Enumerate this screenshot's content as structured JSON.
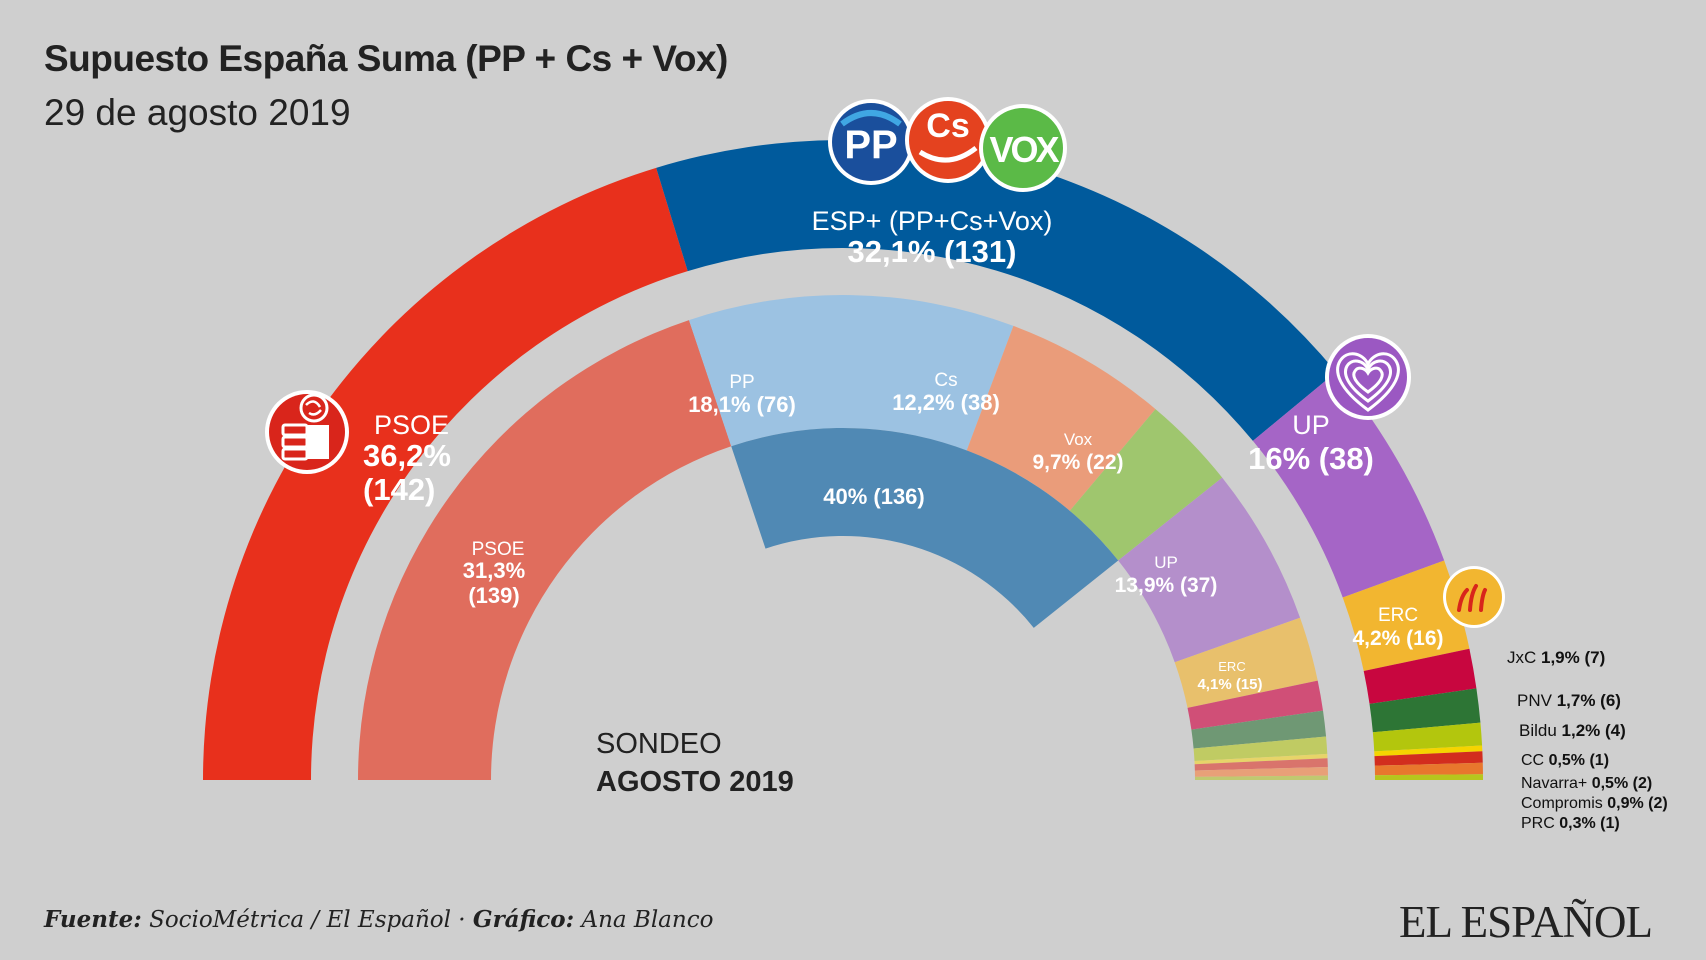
{
  "title": "Supuesto España Suma (PP + Cs + Vox)",
  "subtitle": "29 de agosto 2019",
  "footer": {
    "source_label": "Fuente:",
    "source": "SocioMétrica / El Español",
    "sep": " · ",
    "graphic_label": "Gráfico:",
    "author": "Ana Blanco"
  },
  "brand": "EL ESPAÑOL",
  "sondeo": {
    "label": "SONDEO",
    "date": "AGOSTO 2019"
  },
  "logos": {
    "pp": "PP",
    "cs": "Cs",
    "vox": "VOX"
  },
  "chart_data": [
    {
      "type": "pie",
      "name": "Supuesto España Suma (outer ring)",
      "total_seats": 350,
      "series": [
        {
          "party": "PSOE",
          "label": "PSOE",
          "pct": "36,2%",
          "value": 36.2,
          "seats": 142,
          "color": "#e8301c"
        },
        {
          "party": "ESP+",
          "label": "ESP+ (PP+Cs+Vox)",
          "pct": "32,1%",
          "value": 32.1,
          "seats": 131,
          "color": "#005a9c"
        },
        {
          "party": "UP",
          "label": "UP",
          "pct": "16%",
          "value": 16.0,
          "seats": 38,
          "color": "#a565c6"
        },
        {
          "party": "ERC",
          "label": "ERC",
          "pct": "4,2%",
          "value": 4.2,
          "seats": 16,
          "color": "#f2b630"
        },
        {
          "party": "JxC",
          "label": "JxC",
          "pct": "1,9%",
          "value": 1.9,
          "seats": 7,
          "color": "#c8063f"
        },
        {
          "party": "PNV",
          "label": "PNV",
          "pct": "1,7%",
          "value": 1.7,
          "seats": 6,
          "color": "#2d7535"
        },
        {
          "party": "Bildu",
          "label": "Bildu",
          "pct": "1,2%",
          "value": 1.2,
          "seats": 4,
          "color": "#b3c60d"
        },
        {
          "party": "CC",
          "label": "CC",
          "pct": "0,5%",
          "value": 0.5,
          "seats": 1,
          "color": "#f5d400"
        },
        {
          "party": "Navarra+",
          "label": "Navarra+",
          "pct": "0,5%",
          "value": 0.5,
          "seats": 2,
          "color": "#d22d1e"
        },
        {
          "party": "Compromis",
          "label": "Compromis",
          "pct": "0,9%",
          "value": 0.9,
          "seats": 2,
          "color": "#e8772d"
        },
        {
          "party": "PRC",
          "label": "PRC",
          "pct": "0,3%",
          "value": 0.3,
          "seats": 1,
          "color": "#b6c61d"
        }
      ]
    },
    {
      "type": "pie",
      "name": "Sondeo agosto 2019 (inner ring)",
      "total_seats": 350,
      "series": [
        {
          "party": "PSOE",
          "label": "PSOE",
          "pct": "31,3%",
          "value": 31.3,
          "seats": 139,
          "color": "#e06d5d"
        },
        {
          "party": "PP",
          "label": "PP",
          "pct": "18,1%",
          "value": 18.1,
          "seats": 76,
          "color": "#9cc2e2"
        },
        {
          "party": "Cs",
          "label": "Cs",
          "pct": "12,2%",
          "value": 12.2,
          "seats": 38,
          "color": "#ea9c7a"
        },
        {
          "party": "Vox",
          "label": "Vox",
          "pct": "9,7%",
          "value": 9.7,
          "seats": 22,
          "color": "#9fc66e"
        },
        {
          "party": "UP",
          "label": "UP",
          "pct": "13,9%",
          "value": 13.9,
          "seats": 37,
          "color": "#b48fcb"
        },
        {
          "party": "ERC",
          "label": "ERC",
          "pct": "4,1%",
          "value": 4.1,
          "seats": 15,
          "color": "#e8c06c"
        },
        {
          "party": "JxC",
          "label": "",
          "pct": "",
          "seats": 7,
          "color": "#d04f77"
        },
        {
          "party": "PNV",
          "label": "",
          "pct": "",
          "seats": 6,
          "color": "#6f9874"
        },
        {
          "party": "Bildu",
          "label": "",
          "pct": "",
          "seats": 4,
          "color": "#c0cb63"
        },
        {
          "party": "CC",
          "label": "",
          "pct": "",
          "seats": 1,
          "color": "#e7d469"
        },
        {
          "party": "Navarra+",
          "label": "",
          "pct": "",
          "seats": 2,
          "color": "#d9746c"
        },
        {
          "party": "Compromis",
          "label": "",
          "pct": "",
          "seats": 2,
          "color": "#e8a078"
        },
        {
          "party": "PRC",
          "label": "",
          "pct": "",
          "seats": 1,
          "color": "#c0c970"
        }
      ]
    },
    {
      "type": "pie",
      "name": "Sondeo agosto 2019 (PP+Cs+Vox sum band)",
      "series": [
        {
          "party": "PP+Cs+Vox",
          "label": "40% (136)",
          "value": 40,
          "seats": 136,
          "color": "#5089b4"
        }
      ]
    }
  ]
}
